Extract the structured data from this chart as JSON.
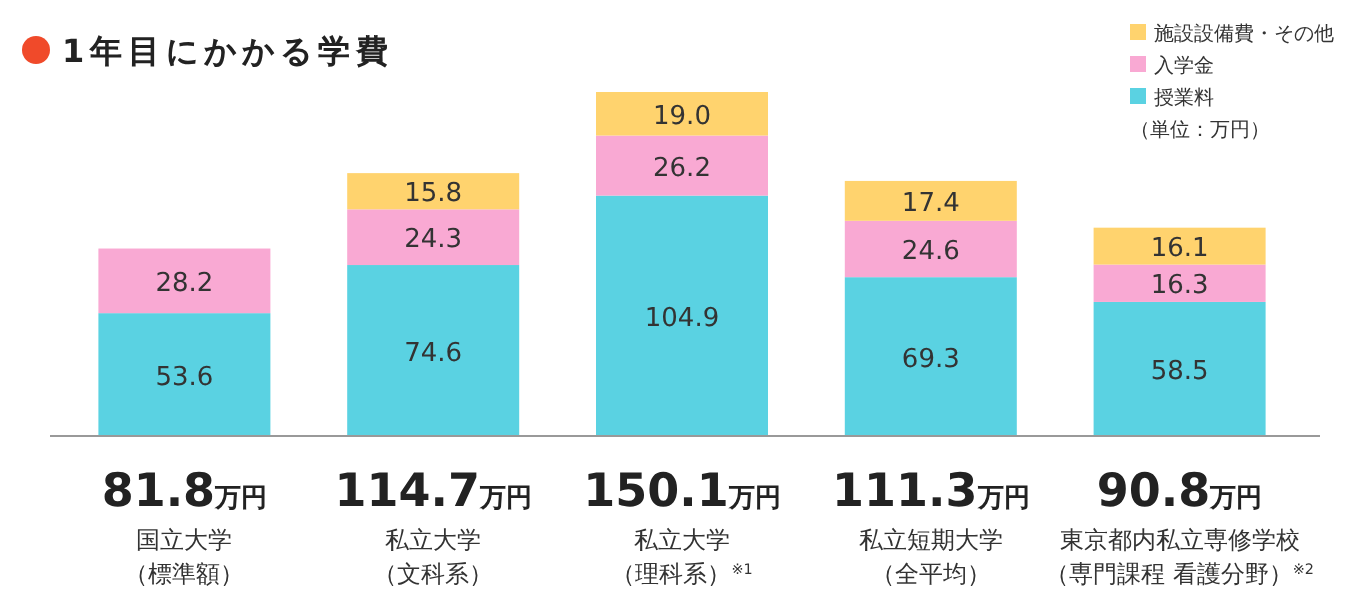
{
  "chart_data": {
    "type": "bar",
    "stacked": true,
    "title": "1年目にかかる学費",
    "categories": [
      "国立大学（標準額）",
      "私立大学（文科系）",
      "私立大学（理科系）$^{※1}$",
      "私立短期大学（全平均）",
      "東京都内私立専修学校（専門課程 看護分野）$^{※2}$"
    ],
    "series": [
      {
        "name": "授業料",
        "color": "#5ad2e2",
        "values": [
          53.6,
          74.6,
          104.9,
          69.3,
          58.5
        ],
        "value_labels": [
          "53.6",
          "74.6",
          "104.9",
          "69.3",
          "58.5"
        ]
      },
      {
        "name": "入学金",
        "color": "#f9a9d3",
        "values": [
          28.2,
          24.3,
          26.2,
          24.6,
          16.3
        ],
        "value_labels": [
          "28.2",
          "24.3",
          "26.2",
          "24.6",
          "16.3"
        ]
      },
      {
        "name": "施設設備費・その他",
        "color": "#ffd36e",
        "values": [
          null,
          15.8,
          19.0,
          17.4,
          16.1
        ],
        "value_labels": [
          null,
          "15.8",
          "19.0",
          "17.4",
          "16.1"
        ]
      }
    ],
    "totals": [
      "81.8万円",
      "114.7万円",
      "150.1万円",
      "111.3万円",
      "90.8万円"
    ],
    "legend": "top right",
    "annotations": [
      "（単位：万円）"
    ]
  }
}
